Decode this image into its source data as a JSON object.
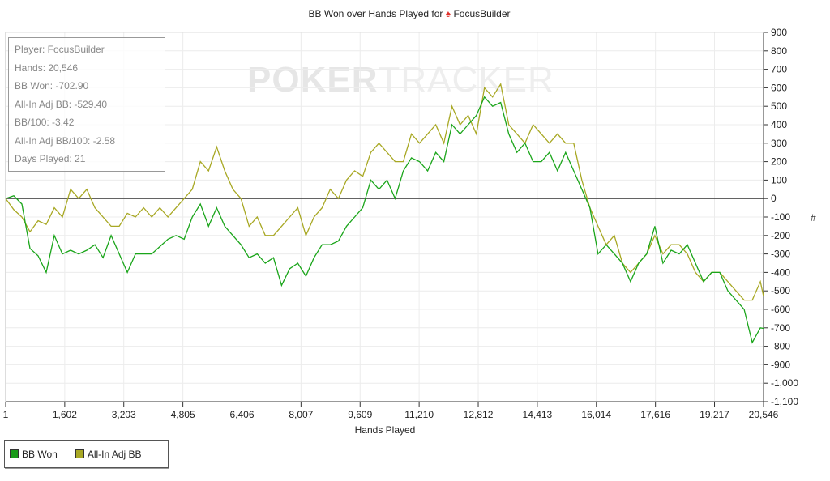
{
  "title": {
    "text": "BB Won over Hands Played for",
    "player": "FocusBuilder",
    "icon": "pokerstars-spade-icon"
  },
  "watermark": {
    "bold": "POKER",
    "light": "TRACKER"
  },
  "info": [
    "Player: FocusBuilder",
    "Hands: 20,546",
    "BB Won: -702.90",
    "All-In Adj BB: -529.40",
    "BB/100: -3.42",
    "All-In Adj BB/100: -2.58",
    "Days Played: 21"
  ],
  "chart_data": {
    "type": "line",
    "title": "BB Won over Hands Played for FocusBuilder",
    "xlabel": "Hands Played",
    "ylabel": "#",
    "xlim": [
      1,
      20546
    ],
    "ylim": [
      -1100,
      900
    ],
    "xticks": [
      "1",
      "1,602",
      "3,203",
      "4,805",
      "6,406",
      "8,007",
      "9,609",
      "11,210",
      "12,812",
      "14,413",
      "16,014",
      "17,616",
      "19,217",
      "20,546"
    ],
    "xtick_values": [
      1,
      1602,
      3203,
      4805,
      6406,
      8007,
      9609,
      11210,
      12812,
      14413,
      16014,
      17616,
      19217,
      20546
    ],
    "yticks": [
      900,
      800,
      700,
      600,
      500,
      400,
      300,
      200,
      100,
      0,
      -100,
      -200,
      -300,
      -400,
      -500,
      -600,
      -700,
      -800,
      -900,
      -1000,
      -1100
    ],
    "ytick_labels": [
      "900",
      "800",
      "700",
      "600",
      "500",
      "400",
      "300",
      "200",
      "100",
      "0",
      "-100",
      "-200",
      "-300",
      "-400",
      "-500",
      "-600",
      "-700",
      "-800",
      "-900",
      "-1,000",
      "-1,100"
    ],
    "grid": true,
    "legend_position": "bottom-left",
    "x_step": 220,
    "x_final": 20546,
    "series": [
      {
        "name": "BB Won",
        "color": "#1aa51a",
        "values": [
          0,
          15,
          -30,
          -270,
          -310,
          -400,
          -200,
          -300,
          -280,
          -300,
          -280,
          -250,
          -320,
          -200,
          -300,
          -400,
          -300,
          -300,
          -300,
          -260,
          -220,
          -200,
          -220,
          -100,
          -30,
          -150,
          -50,
          -150,
          -200,
          -250,
          -320,
          -300,
          -350,
          -320,
          -470,
          -380,
          -350,
          -420,
          -320,
          -250,
          -250,
          -230,
          -150,
          -100,
          -50,
          100,
          50,
          100,
          0,
          150,
          220,
          200,
          150,
          250,
          200,
          400,
          350,
          400,
          450,
          550,
          500,
          520,
          350,
          250,
          300,
          200,
          200,
          250,
          150,
          250,
          150,
          50,
          -50,
          -300,
          -250,
          -300,
          -350,
          -450,
          -350,
          -300,
          -150,
          -350,
          -280,
          -300,
          -250,
          -350,
          -450,
          -400,
          -400,
          -500,
          -550,
          -600,
          -780,
          -700,
          -702.9
        ]
      },
      {
        "name": "All-In Adj BB",
        "color": "#a8a824",
        "values": [
          0,
          -60,
          -100,
          -180,
          -120,
          -140,
          -50,
          -100,
          50,
          0,
          50,
          -50,
          -100,
          -150,
          -150,
          -80,
          -100,
          -50,
          -100,
          -50,
          -100,
          -50,
          0,
          50,
          200,
          150,
          280,
          150,
          50,
          0,
          -150,
          -100,
          -200,
          -200,
          -150,
          -100,
          -50,
          -200,
          -100,
          -50,
          50,
          0,
          100,
          150,
          120,
          250,
          300,
          250,
          200,
          200,
          350,
          300,
          350,
          400,
          300,
          500,
          400,
          450,
          350,
          600,
          550,
          620,
          400,
          350,
          300,
          400,
          350,
          300,
          350,
          300,
          300,
          100,
          -50,
          -150,
          -250,
          -200,
          -350,
          -400,
          -350,
          -300,
          -200,
          -300,
          -250,
          -250,
          -300,
          -400,
          -450,
          -400,
          -400,
          -450,
          -500,
          -550,
          -550,
          -450,
          -529.4
        ]
      }
    ]
  }
}
